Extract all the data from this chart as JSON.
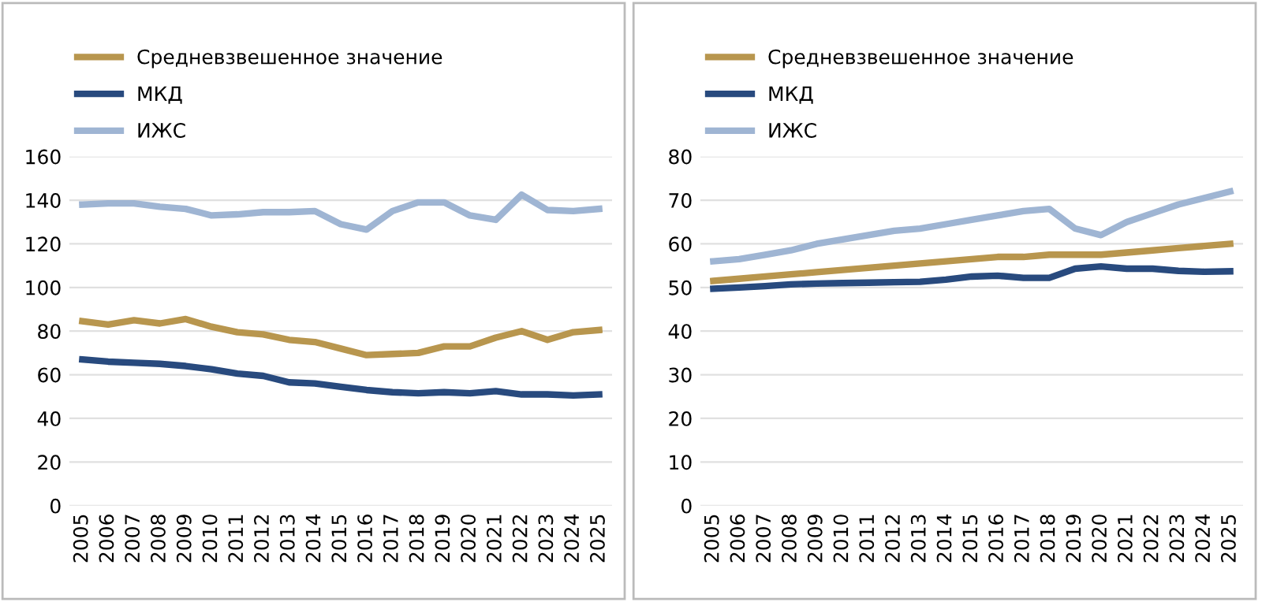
{
  "chart_data": [
    {
      "type": "line",
      "categories": [
        "2005",
        "2006",
        "2007",
        "2008",
        "2009",
        "2010",
        "2011",
        "2012",
        "2013",
        "2014",
        "2015",
        "2016",
        "2017",
        "2018",
        "2019",
        "2020",
        "2021",
        "2022",
        "2023",
        "2024",
        "2025"
      ],
      "ylim": [
        0,
        160
      ],
      "yticks": [
        0,
        20,
        40,
        60,
        80,
        100,
        120,
        140,
        160
      ],
      "grid": "y",
      "legend": "top left",
      "series": [
        {
          "name": "Средневзвешенное значение",
          "color": "#b8964e",
          "values": [
            84.5,
            83,
            85,
            83.5,
            85.5,
            82,
            79.5,
            78.5,
            76,
            75,
            72,
            69,
            69.5,
            70,
            73,
            73,
            77,
            80,
            76,
            79.5,
            80.5
          ]
        },
        {
          "name": "МКД",
          "color": "#284a7e",
          "values": [
            67,
            66,
            65.5,
            65,
            64,
            62.5,
            60.5,
            59.5,
            56.5,
            56,
            54.5,
            53,
            52,
            51.5,
            52,
            51.5,
            52.5,
            51,
            51,
            50.5,
            51
          ]
        },
        {
          "name": "ИЖС",
          "color": "#9fb5d3",
          "values": [
            138,
            138.5,
            138.5,
            137,
            136,
            133,
            133.5,
            134.5,
            134.5,
            135,
            129,
            126.5,
            135,
            139,
            139,
            133,
            131,
            142.5,
            135.5,
            135,
            136
          ]
        }
      ]
    },
    {
      "type": "line",
      "categories": [
        "2005",
        "2006",
        "2007",
        "2008",
        "2009",
        "2010",
        "2011",
        "2012",
        "2013",
        "2014",
        "2015",
        "2016",
        "2017",
        "2018",
        "2019",
        "2020",
        "2021",
        "2022",
        "2023",
        "2024",
        "2025"
      ],
      "ylim": [
        0,
        80
      ],
      "yticks": [
        0,
        10,
        20,
        30,
        40,
        50,
        60,
        70,
        80
      ],
      "grid": "y",
      "legend": "top left",
      "series": [
        {
          "name": "Средневзвешенное значение",
          "color": "#b8964e",
          "values": [
            51.5,
            52,
            52.5,
            53,
            53.5,
            54,
            54.5,
            55,
            55.5,
            56,
            56.5,
            57,
            57,
            57.5,
            57.5,
            57.5,
            58,
            58.5,
            59,
            59.5,
            60
          ]
        },
        {
          "name": "МКД",
          "color": "#284a7e",
          "values": [
            49.7,
            50,
            50.3,
            50.7,
            50.9,
            51,
            51.1,
            51.2,
            51.3,
            51.8,
            52.5,
            52.7,
            52.2,
            52.2,
            54.3,
            54.8,
            54.3,
            54.3,
            53.8,
            53.6,
            53.7
          ]
        },
        {
          "name": "ИЖС",
          "color": "#9fb5d3",
          "values": [
            56,
            56.5,
            57.5,
            58.5,
            60,
            61,
            62,
            63,
            63.5,
            64.5,
            65.5,
            66.5,
            67.5,
            68,
            63.5,
            62,
            65,
            67,
            69,
            70.5,
            72
          ]
        }
      ]
    }
  ]
}
